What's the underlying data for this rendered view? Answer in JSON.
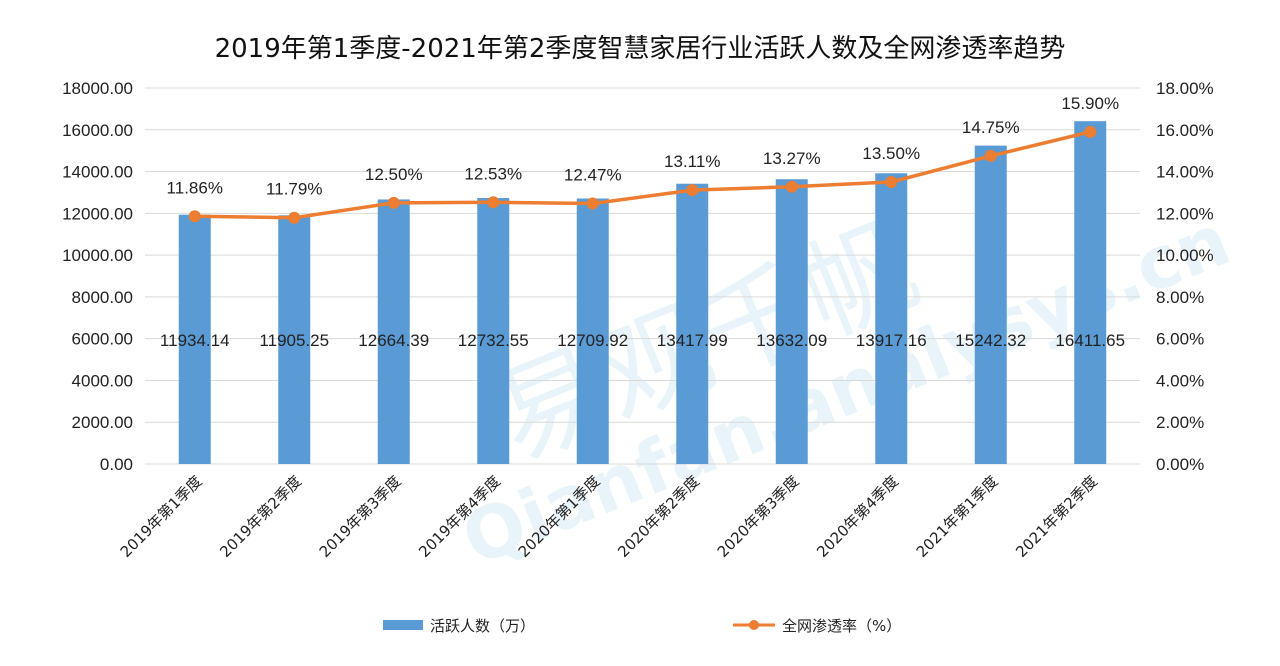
{
  "chart_data": {
    "type": "bar",
    "title": "2019年第1季度-2021年第2季度智慧家居行业活跃人数及全网渗透率趋势",
    "categories": [
      "2019年第1季度",
      "2019年第2季度",
      "2019年第3季度",
      "2019年第4季度",
      "2020年第1季度",
      "2020年第2季度",
      "2020年第3季度",
      "2020年第4季度",
      "2021年第1季度",
      "2021年第2季度"
    ],
    "series": [
      {
        "name": "活跃人数（万）",
        "type": "bar",
        "axis": "left",
        "color": "#5b9bd5",
        "values": [
          11934.14,
          11905.25,
          12664.39,
          12732.55,
          12709.92,
          13417.99,
          13632.09,
          13917.16,
          15242.32,
          16411.65
        ],
        "labels": [
          "11934.14",
          "11905.25",
          "12664.39",
          "12732.55",
          "12709.92",
          "13417.99",
          "13632.09",
          "13917.16",
          "15242.32",
          "16411.65"
        ]
      },
      {
        "name": "全网渗透率（%）",
        "type": "line",
        "axis": "right",
        "color": "#ed7d31",
        "values": [
          11.86,
          11.79,
          12.5,
          12.53,
          12.47,
          13.11,
          13.27,
          13.5,
          14.75,
          15.9
        ],
        "labels": [
          "11.86%",
          "11.79%",
          "12.50%",
          "12.53%",
          "12.47%",
          "13.11%",
          "13.27%",
          "13.50%",
          "14.75%",
          "15.90%"
        ]
      }
    ],
    "y_left": {
      "ylim": [
        0,
        18000
      ],
      "ticks": [
        "0.00",
        "2000.00",
        "4000.00",
        "6000.00",
        "8000.00",
        "10000.00",
        "12000.00",
        "14000.00",
        "16000.00",
        "18000.00"
      ]
    },
    "y_right": {
      "ylim": [
        0,
        18
      ],
      "ticks": [
        "0.00%",
        "2.00%",
        "4.00%",
        "6.00%",
        "8.00%",
        "10.00%",
        "12.00%",
        "14.00%",
        "16.00%",
        "18.00%"
      ]
    },
    "grid": true,
    "legend_position": "bottom"
  },
  "watermark": {
    "text_cn": "易观千帆",
    "text_en": "Qianfan.analysys.cn"
  }
}
